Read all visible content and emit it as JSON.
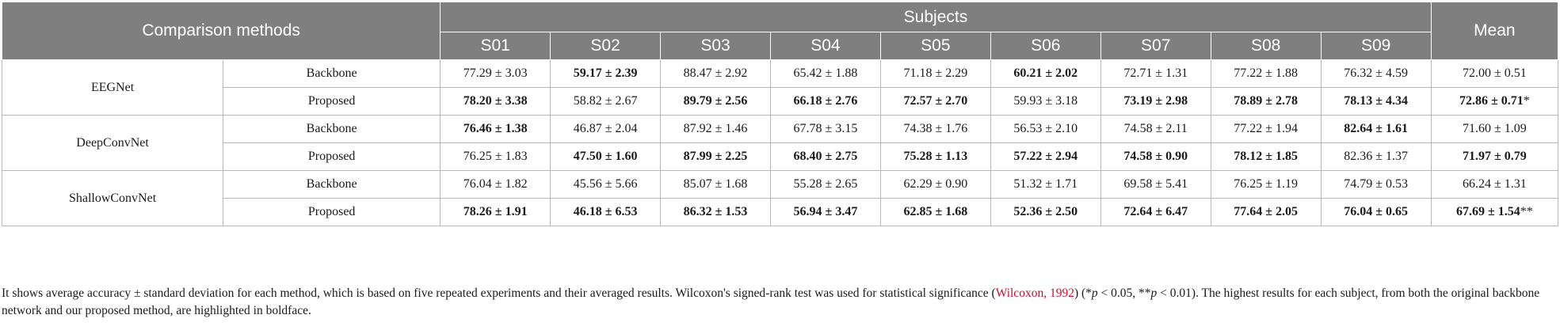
{
  "table": {
    "header": {
      "comparison": "Comparison methods",
      "subjects": "Subjects",
      "mean": "Mean",
      "subject_ids": [
        "S01",
        "S02",
        "S03",
        "S04",
        "S05",
        "S06",
        "S07",
        "S08",
        "S09"
      ]
    },
    "groups": [
      {
        "name": "EEGNet",
        "rows": [
          {
            "label": "Backbone",
            "cells": [
              {
                "v": "77.29 ± 3.03",
                "bold": false
              },
              {
                "v": "59.17 ± 2.39",
                "bold": true
              },
              {
                "v": "88.47 ± 2.92",
                "bold": false
              },
              {
                "v": "65.42 ± 1.88",
                "bold": false
              },
              {
                "v": "71.18 ± 2.29",
                "bold": false
              },
              {
                "v": "60.21 ± 2.02",
                "bold": true
              },
              {
                "v": "72.71 ± 1.31",
                "bold": false
              },
              {
                "v": "77.22 ± 1.88",
                "bold": false
              },
              {
                "v": "76.32 ± 4.59",
                "bold": false
              },
              {
                "v": "72.00 ± 0.51",
                "bold": false,
                "sup": ""
              }
            ]
          },
          {
            "label": "Proposed",
            "cells": [
              {
                "v": "78.20 ± 3.38",
                "bold": true
              },
              {
                "v": "58.82 ± 2.67",
                "bold": false
              },
              {
                "v": "89.79 ± 2.56",
                "bold": true
              },
              {
                "v": "66.18 ± 2.76",
                "bold": true
              },
              {
                "v": "72.57 ± 2.70",
                "bold": true
              },
              {
                "v": "59.93 ± 3.18",
                "bold": false
              },
              {
                "v": "73.19 ± 2.98",
                "bold": true
              },
              {
                "v": "78.89 ± 2.78",
                "bold": true
              },
              {
                "v": "78.13 ± 4.34",
                "bold": true
              },
              {
                "v": "72.86 ± 0.71",
                "bold": true,
                "sup": "*"
              }
            ]
          }
        ]
      },
      {
        "name": "DeepConvNet",
        "rows": [
          {
            "label": "Backbone",
            "cells": [
              {
                "v": "76.46 ± 1.38",
                "bold": true
              },
              {
                "v": "46.87 ± 2.04",
                "bold": false
              },
              {
                "v": "87.92 ± 1.46",
                "bold": false
              },
              {
                "v": "67.78 ± 3.15",
                "bold": false
              },
              {
                "v": "74.38 ± 1.76",
                "bold": false
              },
              {
                "v": "56.53 ± 2.10",
                "bold": false
              },
              {
                "v": "74.58 ± 2.11",
                "bold": false
              },
              {
                "v": "77.22 ± 1.94",
                "bold": false
              },
              {
                "v": "82.64 ± 1.61",
                "bold": true
              },
              {
                "v": "71.60 ± 1.09",
                "bold": false,
                "sup": ""
              }
            ]
          },
          {
            "label": "Proposed",
            "cells": [
              {
                "v": "76.25 ± 1.83",
                "bold": false
              },
              {
                "v": "47.50 ± 1.60",
                "bold": true
              },
              {
                "v": "87.99 ± 2.25",
                "bold": true
              },
              {
                "v": "68.40 ± 2.75",
                "bold": true
              },
              {
                "v": "75.28 ± 1.13",
                "bold": true
              },
              {
                "v": "57.22 ± 2.94",
                "bold": true
              },
              {
                "v": "74.58 ± 0.90",
                "bold": true
              },
              {
                "v": "78.12 ± 1.85",
                "bold": true
              },
              {
                "v": "82.36 ± 1.37",
                "bold": false
              },
              {
                "v": "71.97 ± 0.79",
                "bold": true,
                "sup": ""
              }
            ]
          }
        ]
      },
      {
        "name": "ShallowConvNet",
        "rows": [
          {
            "label": "Backbone",
            "cells": [
              {
                "v": "76.04 ± 1.82",
                "bold": false
              },
              {
                "v": "45.56 ± 5.66",
                "bold": false
              },
              {
                "v": "85.07 ± 1.68",
                "bold": false
              },
              {
                "v": "55.28 ± 2.65",
                "bold": false
              },
              {
                "v": "62.29 ± 0.90",
                "bold": false
              },
              {
                "v": "51.32 ± 1.71",
                "bold": false
              },
              {
                "v": "69.58 ± 5.41",
                "bold": false
              },
              {
                "v": "76.25 ± 1.19",
                "bold": false
              },
              {
                "v": "74.79 ± 0.53",
                "bold": false
              },
              {
                "v": "66.24 ± 1.31",
                "bold": false,
                "sup": ""
              }
            ]
          },
          {
            "label": "Proposed",
            "cells": [
              {
                "v": "78.26 ± 1.91",
                "bold": true
              },
              {
                "v": "46.18 ± 6.53",
                "bold": true
              },
              {
                "v": "86.32 ± 1.53",
                "bold": true
              },
              {
                "v": "56.94 ± 3.47",
                "bold": true
              },
              {
                "v": "62.85 ± 1.68",
                "bold": true
              },
              {
                "v": "52.36 ± 2.50",
                "bold": true
              },
              {
                "v": "72.64 ± 6.47",
                "bold": true
              },
              {
                "v": "77.64 ± 2.05",
                "bold": true
              },
              {
                "v": "76.04 ± 0.65",
                "bold": true
              },
              {
                "v": "67.69 ± 1.54",
                "bold": true,
                "sup": "**"
              }
            ]
          }
        ]
      }
    ]
  },
  "footnote": {
    "before": "It shows average accuracy ± standard deviation for each method, which is based on five repeated experiments and their averaged results. Wilcoxon's signed-rank test was used for statistical significance (",
    "ref": "Wilcoxon, 1992",
    "sig1": " (*p < 0.05,   **p < 0.01)",
    "after": ". The highest results for each subject, from both the original backbone network and our proposed method, are highlighted in boldface."
  },
  "colors": {
    "header_bg": "#7f7f7f",
    "link": "#c8102e"
  }
}
